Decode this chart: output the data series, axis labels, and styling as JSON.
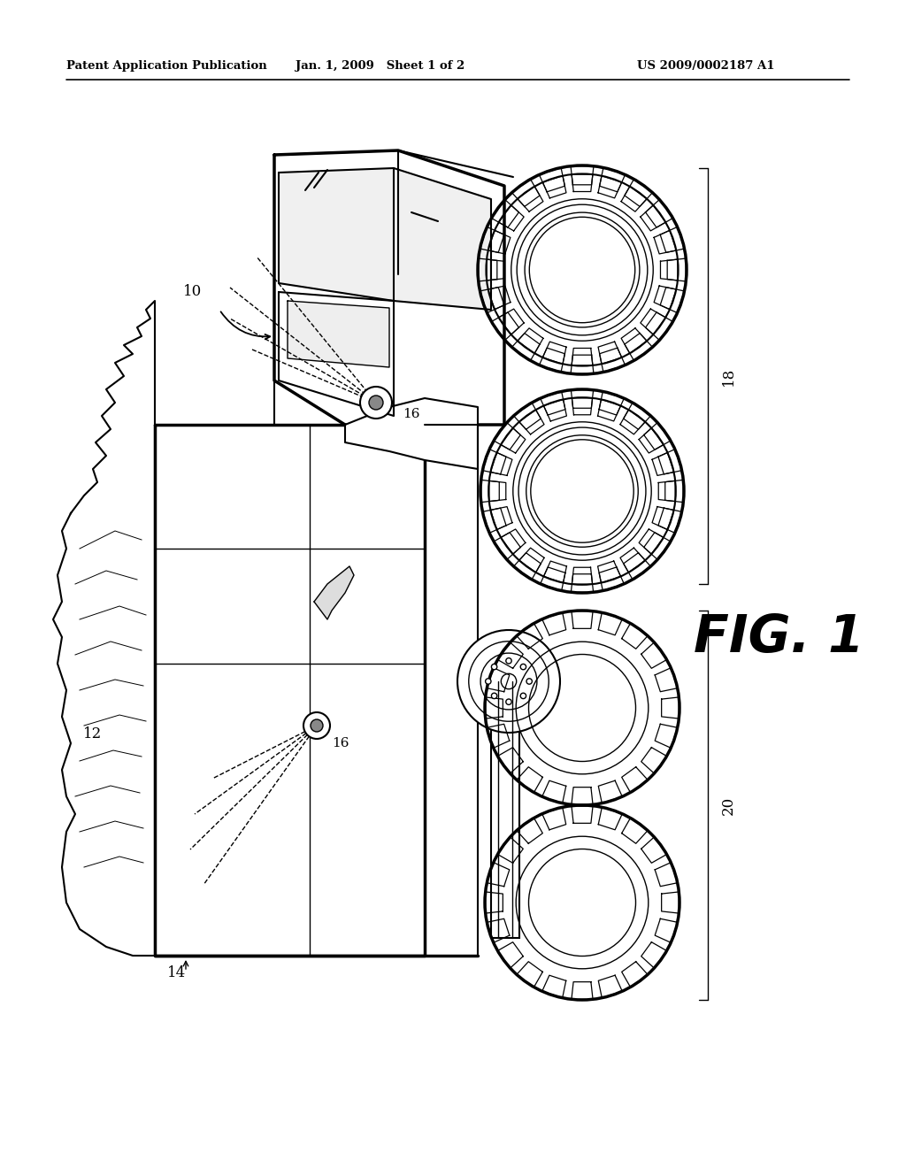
{
  "bg_color": "#ffffff",
  "header_left": "Patent Application Publication",
  "header_mid": "Jan. 1, 2009   Sheet 1 of 2",
  "header_right": "US 2009/0002187 A1",
  "fig_label": "FIG. 1"
}
